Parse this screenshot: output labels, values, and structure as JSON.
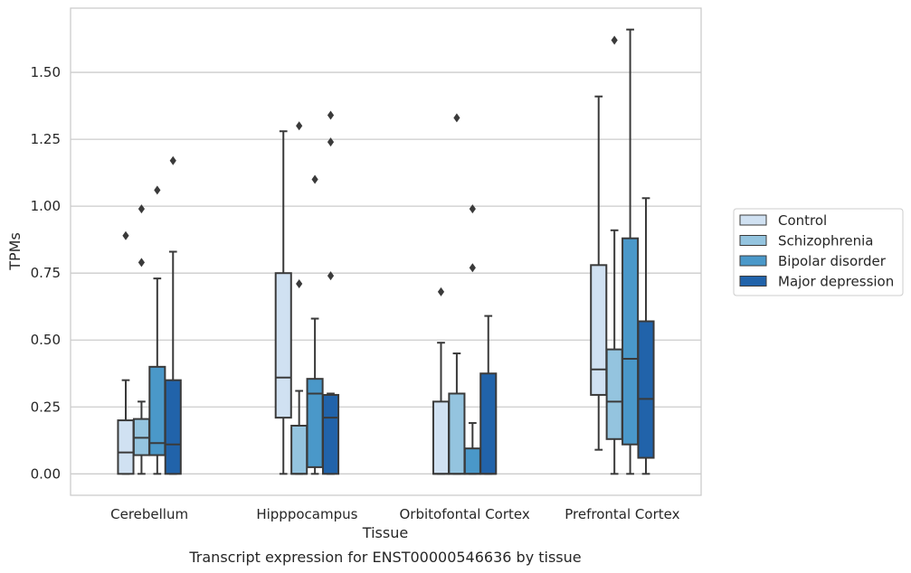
{
  "caption": "Transcript expression for ENST00000546636 by tissue",
  "chart_data": {
    "type": "boxplot",
    "title": "",
    "xlabel": "Tissue",
    "ylabel": "TPMs",
    "ylim": [
      -0.08,
      1.74
    ],
    "yticks": [
      0.0,
      0.25,
      0.5,
      0.75,
      1.0,
      1.25,
      1.5
    ],
    "ytick_labels": [
      "0.00",
      "0.25",
      "0.50",
      "0.75",
      "1.00",
      "1.25",
      "1.50"
    ],
    "categories": [
      "Cerebellum",
      "Hipppocampus",
      "Orbitofontal Cortex",
      "Prefrontal Cortex"
    ],
    "grid": "horizontal",
    "legend_position": "right",
    "series": [
      {
        "name": "Control",
        "color": "#d0e1f2",
        "boxes": [
          {
            "whislo": 0.0,
            "q1": 0.0,
            "med": 0.08,
            "q3": 0.2,
            "whishi": 0.35,
            "fliers": [
              0.89
            ]
          },
          {
            "whislo": 0.0,
            "q1": 0.21,
            "med": 0.36,
            "q3": 0.75,
            "whishi": 1.28,
            "fliers": []
          },
          {
            "whislo": 0.0,
            "q1": 0.0,
            "med": 0.0,
            "q3": 0.27,
            "whishi": 0.49,
            "fliers": [
              0.68
            ]
          },
          {
            "whislo": 0.09,
            "q1": 0.295,
            "med": 0.39,
            "q3": 0.78,
            "whishi": 1.41,
            "fliers": []
          }
        ]
      },
      {
        "name": "Schizophrenia",
        "color": "#94c4df",
        "boxes": [
          {
            "whislo": 0.0,
            "q1": 0.07,
            "med": 0.135,
            "q3": 0.205,
            "whishi": 0.27,
            "fliers": [
              0.79,
              0.99
            ]
          },
          {
            "whislo": 0.0,
            "q1": 0.0,
            "med": 0.0,
            "q3": 0.18,
            "whishi": 0.31,
            "fliers": [
              0.71,
              1.3
            ]
          },
          {
            "whislo": 0.0,
            "q1": 0.0,
            "med": 0.0,
            "q3": 0.3,
            "whishi": 0.45,
            "fliers": [
              1.33
            ]
          },
          {
            "whislo": 0.0,
            "q1": 0.13,
            "med": 0.27,
            "q3": 0.465,
            "whishi": 0.91,
            "fliers": [
              1.62
            ]
          }
        ]
      },
      {
        "name": "Bipolar disorder",
        "color": "#4a98c9",
        "boxes": [
          {
            "whislo": 0.0,
            "q1": 0.07,
            "med": 0.115,
            "q3": 0.4,
            "whishi": 0.73,
            "fliers": [
              1.06
            ]
          },
          {
            "whislo": 0.0,
            "q1": 0.025,
            "med": 0.3,
            "q3": 0.355,
            "whishi": 0.58,
            "fliers": [
              1.1
            ]
          },
          {
            "whislo": 0.0,
            "q1": 0.0,
            "med": 0.0,
            "q3": 0.095,
            "whishi": 0.19,
            "fliers": [
              0.77,
              0.99
            ]
          },
          {
            "whislo": 0.0,
            "q1": 0.11,
            "med": 0.43,
            "q3": 0.88,
            "whishi": 1.66,
            "fliers": []
          }
        ]
      },
      {
        "name": "Major depression",
        "color": "#2163aa",
        "boxes": [
          {
            "whislo": 0.0,
            "q1": 0.0,
            "med": 0.11,
            "q3": 0.35,
            "whishi": 0.83,
            "fliers": [
              1.17
            ]
          },
          {
            "whislo": 0.0,
            "q1": 0.0,
            "med": 0.21,
            "q3": 0.295,
            "whishi": 0.3,
            "fliers": [
              0.74,
              1.24,
              1.34
            ]
          },
          {
            "whislo": 0.0,
            "q1": 0.0,
            "med": 0.0,
            "q3": 0.375,
            "whishi": 0.59,
            "fliers": []
          },
          {
            "whislo": 0.0,
            "q1": 0.06,
            "med": 0.28,
            "q3": 0.57,
            "whishi": 1.03,
            "fliers": []
          }
        ]
      }
    ]
  }
}
